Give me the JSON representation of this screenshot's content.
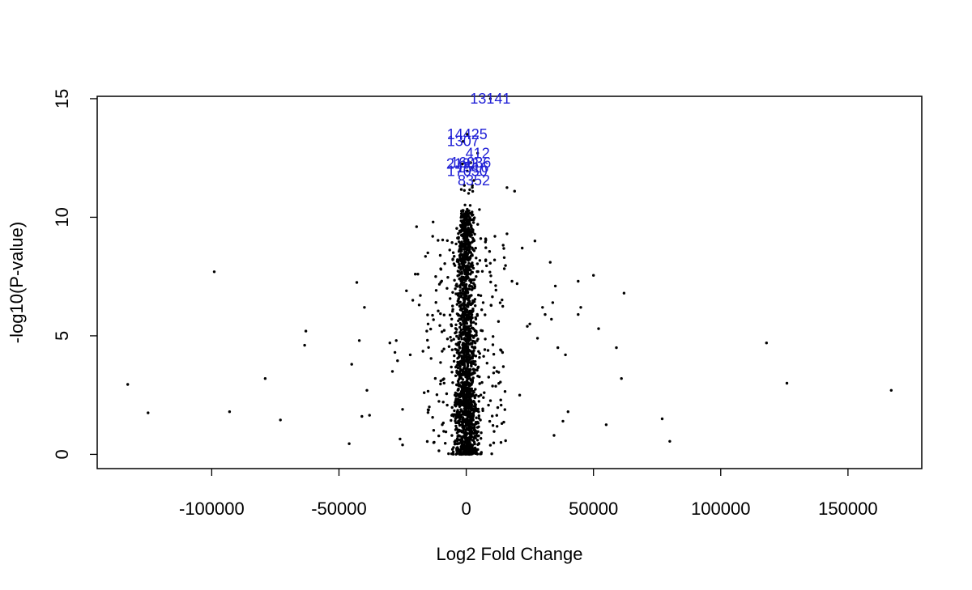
{
  "chart_data": {
    "type": "scatter",
    "xlabel": "Log2 Fold Change",
    "ylabel": "-log10(P-value)",
    "xlim": [
      -145000,
      179000
    ],
    "ylim": [
      -0.6,
      15.1
    ],
    "x_ticks": [
      -100000,
      -50000,
      0,
      50000,
      100000,
      150000
    ],
    "x_tick_labels": [
      "-100000",
      "-50000",
      "0",
      "50000",
      "100000",
      "150000"
    ],
    "y_ticks": [
      0,
      5,
      10,
      15
    ],
    "y_tick_labels": [
      "0",
      "5",
      "10",
      "15"
    ],
    "grid": false,
    "colors": {
      "points": "#000000",
      "labels": "#1f1fd6"
    },
    "outlier_points": [
      [
        -133000,
        2.95
      ],
      [
        -125000,
        1.75
      ],
      [
        -99000,
        7.7
      ],
      [
        -93000,
        1.8
      ],
      [
        -79000,
        3.2
      ],
      [
        -73000,
        1.45
      ],
      [
        -63000,
        5.2
      ],
      [
        -63500,
        4.6
      ],
      [
        -46000,
        0.45
      ],
      [
        -45000,
        3.8
      ],
      [
        -43000,
        7.25
      ],
      [
        -42000,
        4.8
      ],
      [
        -41000,
        1.6
      ],
      [
        -40000,
        6.2
      ],
      [
        -39000,
        2.7
      ],
      [
        -38000,
        1.65
      ],
      [
        -30000,
        4.7
      ],
      [
        -29000,
        3.5
      ],
      [
        -28000,
        4.3
      ],
      [
        -27500,
        4.8
      ],
      [
        -27000,
        3.95
      ],
      [
        -26000,
        0.65
      ],
      [
        -25000,
        1.9
      ],
      [
        -25000,
        0.4
      ],
      [
        -23500,
        6.9
      ],
      [
        -22000,
        4.2
      ],
      [
        -21000,
        6.5
      ],
      [
        -20000,
        7.6
      ],
      [
        -19500,
        9.6
      ],
      [
        -19000,
        7.6
      ],
      [
        -18500,
        6.3
      ],
      [
        -18000,
        6.7
      ],
      [
        -17000,
        4.35
      ],
      [
        -16500,
        2.6
      ],
      [
        -16000,
        8.35
      ],
      [
        -15500,
        5.2
      ],
      [
        -15000,
        5.5
      ],
      [
        -14500,
        2.0
      ],
      [
        -13000,
        9.8
      ],
      [
        -12000,
        7.5
      ],
      [
        35000,
        7.1
      ],
      [
        44000,
        7.3
      ],
      [
        45000,
        6.2
      ],
      [
        50000,
        7.55
      ],
      [
        52000,
        5.3
      ],
      [
        55000,
        1.25
      ],
      [
        59000,
        4.5
      ],
      [
        61000,
        3.2
      ],
      [
        62000,
        6.8
      ],
      [
        77000,
        1.5
      ],
      [
        80000,
        0.55
      ],
      [
        118000,
        4.7
      ],
      [
        126000,
        3.0
      ],
      [
        167000,
        2.7
      ],
      [
        25000,
        5.5
      ],
      [
        27000,
        9.0
      ],
      [
        28000,
        4.9
      ],
      [
        30000,
        6.2
      ],
      [
        31000,
        5.9
      ],
      [
        33000,
        8.1
      ],
      [
        33500,
        5.7
      ],
      [
        34000,
        6.4
      ],
      [
        34500,
        0.8
      ],
      [
        36000,
        4.5
      ],
      [
        38000,
        1.4
      ],
      [
        39000,
        4.2
      ],
      [
        40000,
        1.8
      ],
      [
        44000,
        5.9
      ],
      [
        19000,
        11.1
      ],
      [
        16000,
        11.25
      ],
      [
        16000,
        9.3
      ],
      [
        18000,
        7.3
      ],
      [
        20000,
        7.2
      ],
      [
        21000,
        2.5
      ],
      [
        22000,
        8.7
      ],
      [
        24000,
        5.4
      ],
      [
        -11000,
        6.05
      ],
      [
        -10000,
        3.1
      ],
      [
        12000,
        3.5
      ],
      [
        14000,
        1.3
      ]
    ],
    "labeled_points": [
      {
        "label": "13141",
        "x": 9500,
        "y": 15.0
      },
      {
        "label": "14425",
        "x": 400,
        "y": 13.5
      },
      {
        "label": "1307",
        "x": -1200,
        "y": 13.2
      },
      {
        "label": "412",
        "x": 4500,
        "y": 12.7
      },
      {
        "label": "2193",
        "x": -1500,
        "y": 12.25
      },
      {
        "label": "16036",
        "x": 1800,
        "y": 12.3
      },
      {
        "label": "1516",
        "x": 2500,
        "y": 12.1
      },
      {
        "label": "17050",
        "x": 400,
        "y": 11.95
      },
      {
        "label": "8352",
        "x": 3000,
        "y": 11.55
      }
    ]
  }
}
